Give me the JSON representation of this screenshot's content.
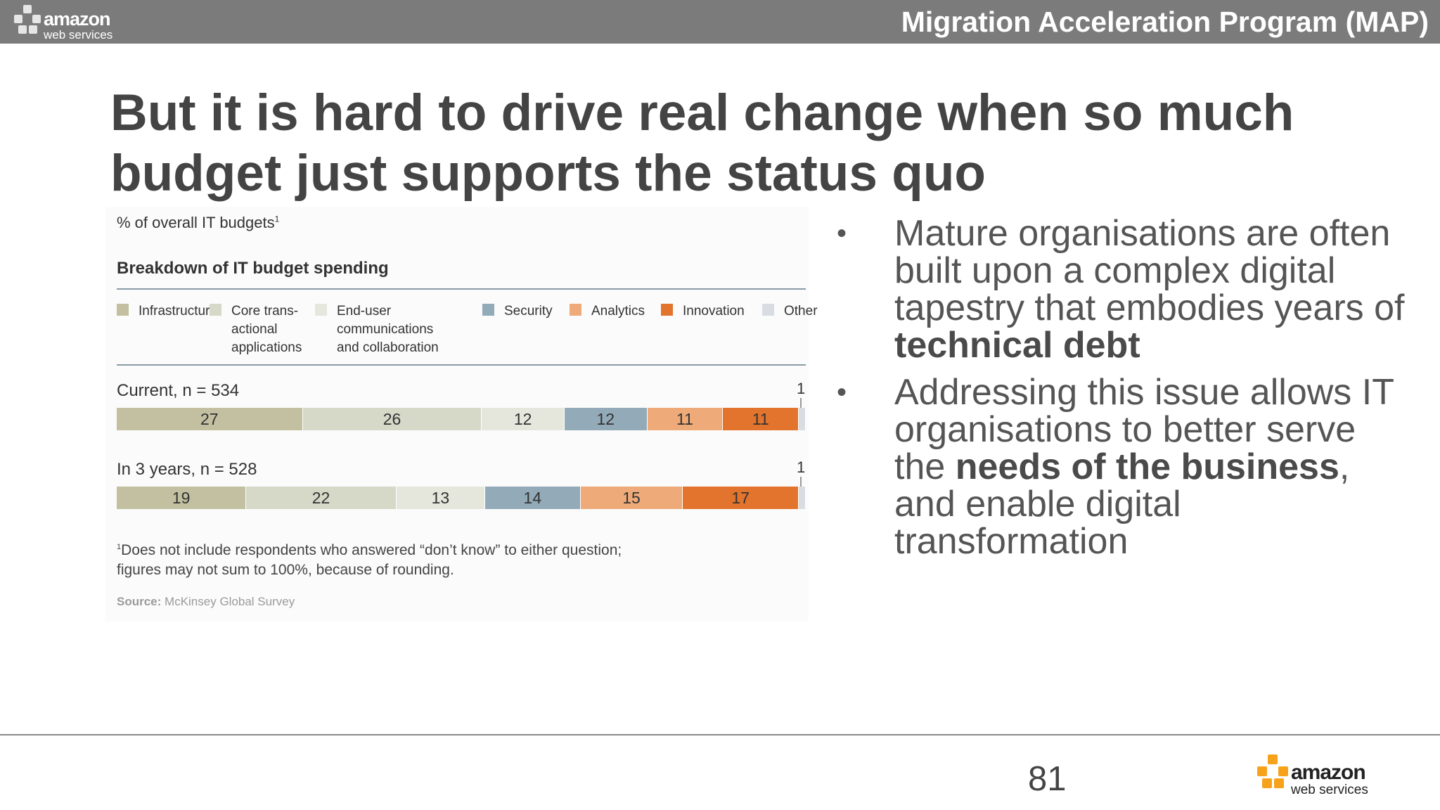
{
  "header": {
    "title": "Migration Acceleration Program (MAP)",
    "logo": {
      "word": "amazon",
      "sub": "web services"
    }
  },
  "slide": {
    "title": "But it is hard to drive real change when so much budget just supports the status quo"
  },
  "chart_data": {
    "type": "bar",
    "subtitle": "% of overall IT budgets",
    "subtitle_mark": "1",
    "title": "Breakdown of IT budget spending",
    "legend": [
      {
        "name": "Infrastructure",
        "color": "#c2c0a0"
      },
      {
        "name": "Core trans-\nactional\napplications",
        "color": "#d6d8c8"
      },
      {
        "name": "End-user\ncommunications\nand collaboration",
        "color": "#e5e6dc"
      },
      {
        "name": "Security",
        "color": "#93aab8"
      },
      {
        "name": "Analytics",
        "color": "#eeaa78"
      },
      {
        "name": "Innovation",
        "color": "#e2742d"
      },
      {
        "name": "Other",
        "color": "#d9dde2"
      }
    ],
    "rows": [
      {
        "label": "Current, n = 534",
        "values": [
          27,
          26,
          12,
          12,
          11,
          11,
          1
        ]
      },
      {
        "label": "In 3 years, n = 528",
        "values": [
          19,
          22,
          13,
          14,
          15,
          17,
          1
        ]
      }
    ],
    "footnote_mark": "1",
    "footnote": "Does not include respondents who answered “don’t know” to either question;\nfigures may not sum to 100%, because of rounding.",
    "source_label": "Source:",
    "source": "McKinsey Global Survey"
  },
  "bullets": [
    {
      "bullet": "•",
      "pre": "Mature organisations are often built upon a complex digital tapestry that embodies years of ",
      "bold": "technical debt",
      "post": ""
    },
    {
      "bullet": "•",
      "pre": "Addressing this issue allows IT organisations to better serve the ",
      "bold": "needs of the business",
      "post": ", and enable digital transformation"
    }
  ],
  "footer": {
    "page_number": "81",
    "logo": {
      "word": "amazon",
      "sub": "web services"
    }
  },
  "colors": {
    "topbar": "#7b7b7b",
    "logo_top_cube": "#e6e6e6",
    "logo_bottom_cube": "#f7a21b"
  }
}
